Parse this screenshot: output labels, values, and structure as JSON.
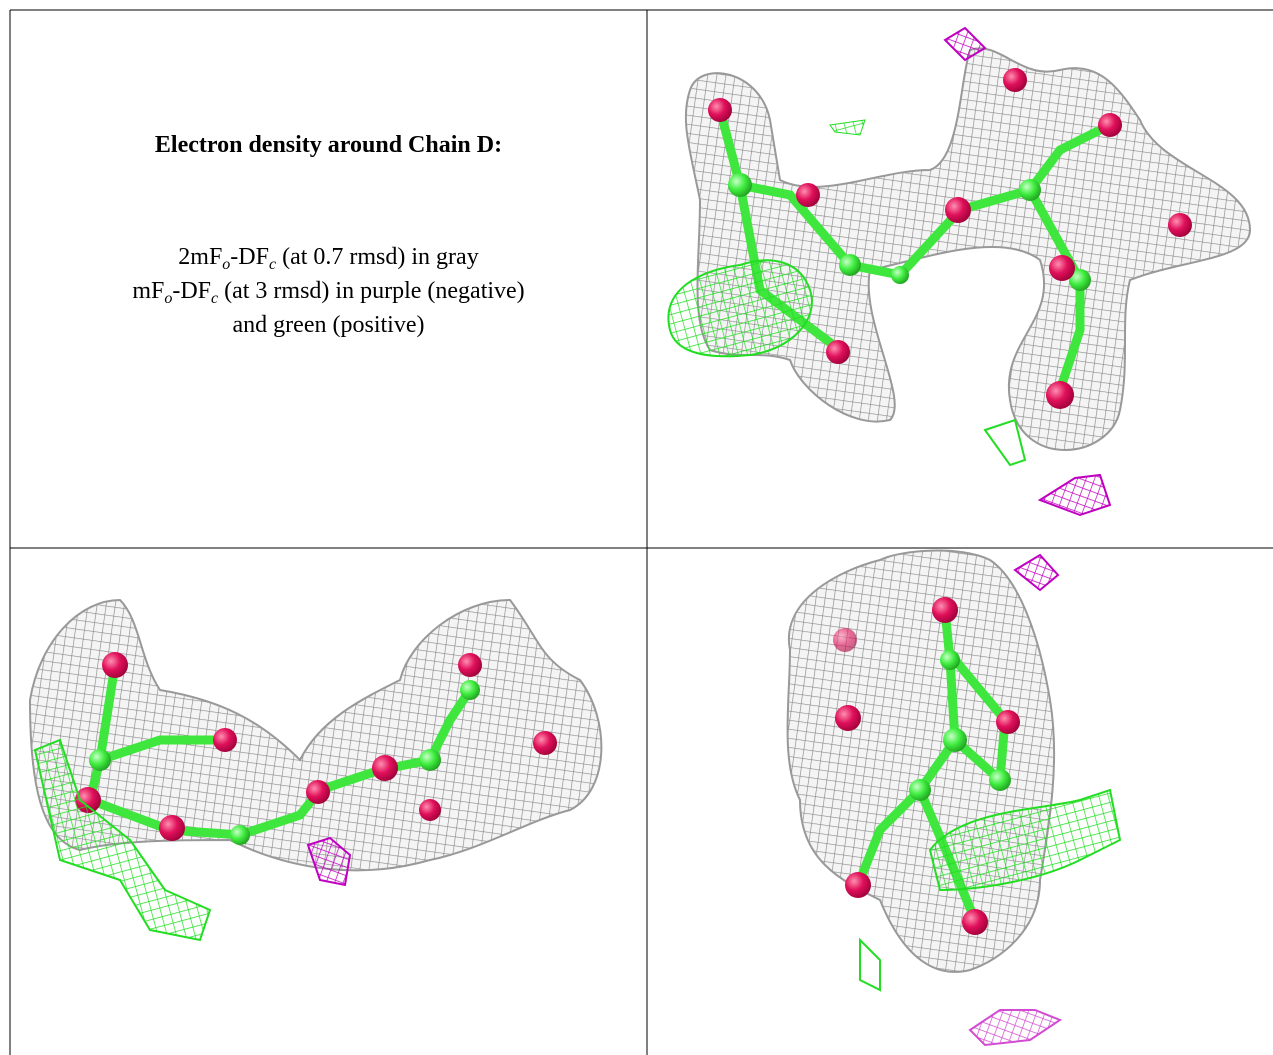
{
  "caption": {
    "title": "Electron density around Chain D:",
    "lines": [
      {
        "parts": [
          {
            "text": "2mF"
          },
          {
            "sub": "o"
          },
          {
            "text": "-DF"
          },
          {
            "sub": "c"
          },
          {
            "text": " (at 0.7 rmsd) in gray"
          }
        ]
      },
      {
        "parts": [
          {
            "text": "mF"
          },
          {
            "sub": "o"
          },
          {
            "text": "-DF"
          },
          {
            "sub": "c"
          },
          {
            "text": " (at 3 rmsd) in purple (negative)"
          }
        ]
      },
      {
        "parts": [
          {
            "text": "and green (positive)"
          }
        ]
      }
    ]
  }
}
